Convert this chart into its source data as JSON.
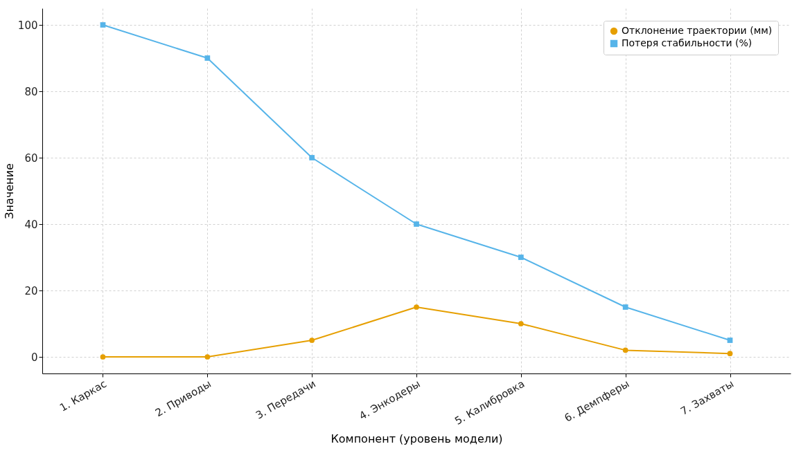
{
  "chart_data": {
    "type": "line",
    "xlabel": "Компонент (уровень модели)",
    "ylabel": "Значение",
    "categories": [
      "1. Каркас",
      "2. Приводы",
      "3. Передачи",
      "4. Энкодеры",
      "5. Калибровка",
      "6. Демпферы",
      "7. Захваты"
    ],
    "series": [
      {
        "name": "Отклонение траектории (мм)",
        "color": "#e69f00",
        "marker": "circle",
        "values": [
          0,
          0,
          5,
          15,
          10,
          2,
          1
        ]
      },
      {
        "name": "Потеря стабильности (%)",
        "color": "#56b4e9",
        "marker": "square",
        "values": [
          100,
          90,
          60,
          40,
          30,
          15,
          5
        ]
      }
    ],
    "ylim": [
      -5,
      105
    ],
    "yticks": [
      0,
      20,
      40,
      60,
      80,
      100
    ],
    "grid": true,
    "legend": "top right",
    "line_style": "solid"
  }
}
